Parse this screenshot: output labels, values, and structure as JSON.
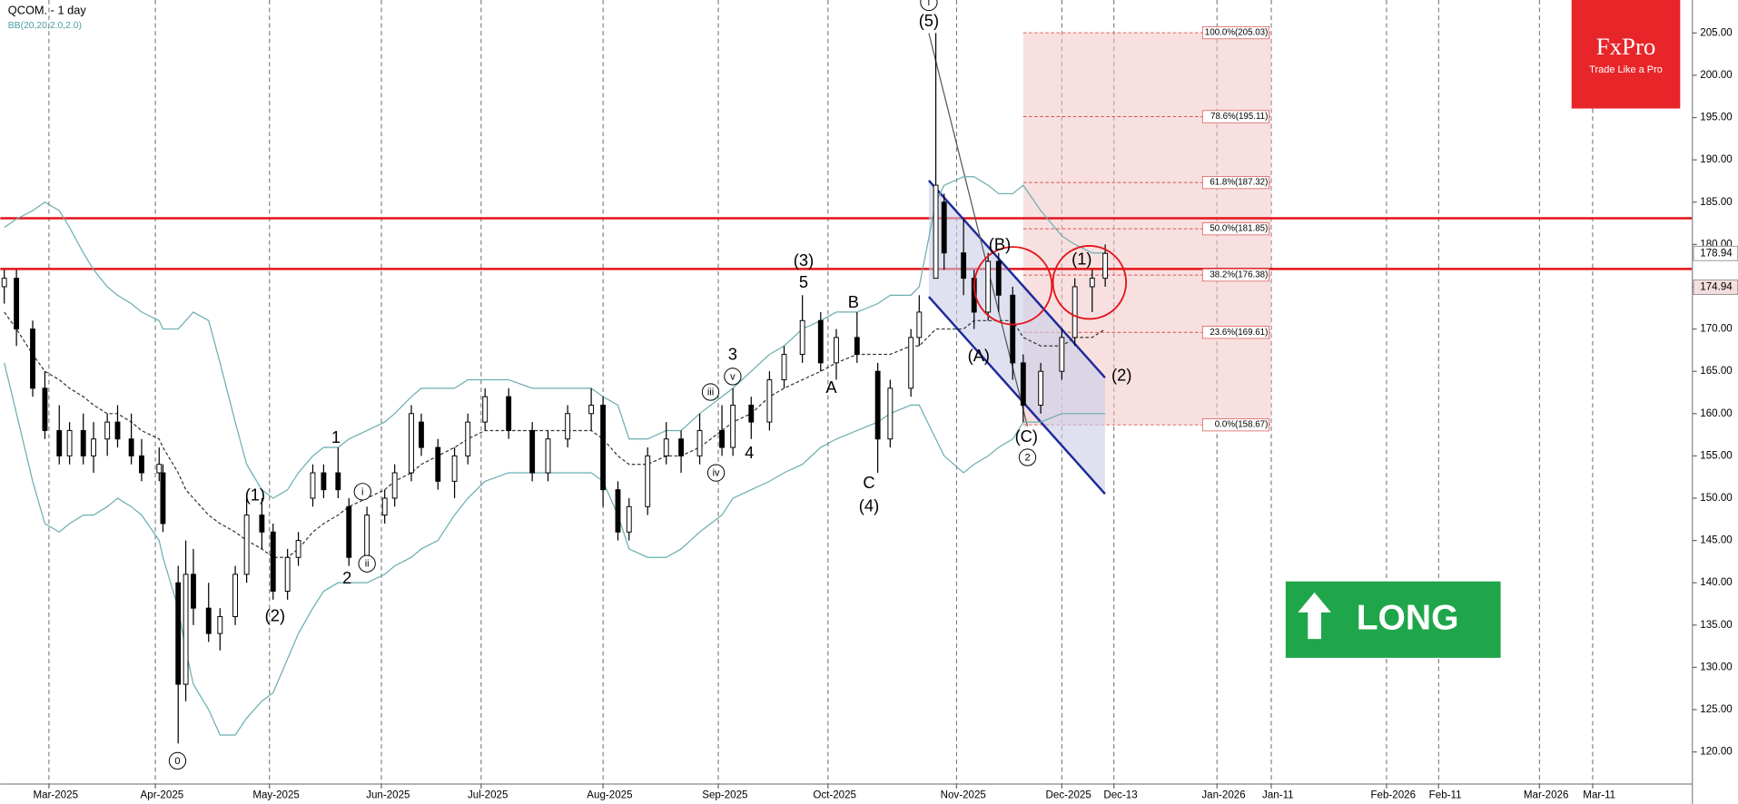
{
  "chart_data": {
    "type": "candlestick",
    "title": "QCOM. - 1 day",
    "indicator_label": "BB(20,20,2.0,2.0)",
    "grid": "x",
    "xlim": [
      "2025-02-17",
      "2026-03-20"
    ],
    "ylim": [
      116.2,
      208.9
    ],
    "xticks": [
      {
        "value": "2025-03-01",
        "label": "Mar-2025"
      },
      {
        "value": "2025-04-01",
        "label": "Apr-2025"
      },
      {
        "value": "2025-05-01",
        "label": "May-2025"
      },
      {
        "value": "2025-06-01",
        "label": "Jun-2025"
      },
      {
        "value": "2025-07-01",
        "label": "Jul-2025"
      },
      {
        "value": "2025-08-01",
        "label": "Aug-2025"
      },
      {
        "value": "2025-09-01",
        "label": "Sep-2025"
      },
      {
        "value": "2025-10-01",
        "label": "Oct-2025"
      },
      {
        "value": "2025-11-01",
        "label": "Nov-2025"
      },
      {
        "value": "2025-12-01",
        "label": "Dec-2025"
      },
      {
        "value": "2025-12-13",
        "label": "Dec-13"
      },
      {
        "value": "2026-01-01",
        "label": "Jan-2026"
      },
      {
        "value": "2026-01-11",
        "label": "Jan-11"
      },
      {
        "value": "2026-02-01",
        "label": "Feb-2026"
      },
      {
        "value": "2026-02-11",
        "label": "Feb-11"
      },
      {
        "value": "2026-03-01",
        "label": "Mar-2026"
      },
      {
        "value": "2026-03-11",
        "label": "Mar-11"
      }
    ],
    "yticks": [
      {
        "value": 120,
        "label": "120.00"
      },
      {
        "value": 125,
        "label": "125.00"
      },
      {
        "value": 130,
        "label": "130.00"
      },
      {
        "value": 135,
        "label": "135.00"
      },
      {
        "value": 140,
        "label": "140.00"
      },
      {
        "value": 145,
        "label": "145.00"
      },
      {
        "value": 150,
        "label": "150.00"
      },
      {
        "value": 155,
        "label": "155.00"
      },
      {
        "value": 160,
        "label": "160.00"
      },
      {
        "value": 165,
        "label": "165.00"
      },
      {
        "value": 170,
        "label": "170.00"
      },
      {
        "value": 175,
        "label": "175.00"
      },
      {
        "value": 180,
        "label": "180.00"
      },
      {
        "value": 185,
        "label": "185.00"
      },
      {
        "value": 190,
        "label": "190.00"
      },
      {
        "value": 195,
        "label": "195.00"
      },
      {
        "value": 200,
        "label": "200.00"
      },
      {
        "value": 205,
        "label": "205.00"
      }
    ],
    "x": [
      "2025-02-18",
      "2025-02-21",
      "2025-02-25",
      "2025-02-28",
      "2025-03-04",
      "2025-03-07",
      "2025-03-11",
      "2025-03-14",
      "2025-03-18",
      "2025-03-21",
      "2025-03-25",
      "2025-03-28",
      "2025-04-02",
      "2025-04-03",
      "2025-04-07",
      "2025-04-09",
      "2025-04-11",
      "2025-04-15",
      "2025-04-18",
      "2025-04-22",
      "2025-04-25",
      "2025-04-29",
      "2025-05-02",
      "2025-05-06",
      "2025-05-09",
      "2025-05-13",
      "2025-05-16",
      "2025-05-20",
      "2025-05-23",
      "2025-05-28",
      "2025-06-02",
      "2025-06-05",
      "2025-06-10",
      "2025-06-13",
      "2025-06-18",
      "2025-06-23",
      "2025-06-27",
      "2025-07-02",
      "2025-07-08",
      "2025-07-14",
      "2025-07-18",
      "2025-07-23",
      "2025-07-29",
      "2025-08-01",
      "2025-08-05",
      "2025-08-08",
      "2025-08-13",
      "2025-08-18",
      "2025-08-22",
      "2025-08-27",
      "2025-09-02",
      "2025-09-05",
      "2025-09-10",
      "2025-09-15",
      "2025-09-19",
      "2025-09-24",
      "2025-09-29",
      "2025-10-03",
      "2025-10-08",
      "2025-10-13",
      "2025-10-16",
      "2025-10-21",
      "2025-10-23",
      "2025-10-27",
      "2025-10-29",
      "2025-11-03",
      "2025-11-06",
      "2025-11-10",
      "2025-11-13",
      "2025-11-17",
      "2025-11-20",
      "2025-11-25",
      "2025-12-01",
      "2025-12-04",
      "2025-12-08",
      "2025-12-11"
    ],
    "open": [
      175,
      176,
      170,
      163,
      158,
      155,
      158,
      155,
      157,
      159,
      157,
      155,
      153,
      153,
      140,
      128,
      141,
      137,
      134,
      136,
      141,
      148,
      146,
      139,
      143,
      150,
      153,
      153,
      149,
      143,
      148,
      150,
      153,
      159,
      156,
      152,
      155,
      159,
      162,
      158,
      153,
      157,
      160,
      161,
      151,
      146,
      149,
      155,
      157,
      155,
      158,
      156,
      161,
      159,
      164,
      167,
      171,
      166,
      169,
      165,
      157,
      163,
      169,
      176,
      185,
      179,
      176,
      172,
      178,
      174,
      166,
      161,
      165,
      169,
      175,
      176
    ],
    "high": [
      177,
      177,
      171,
      165,
      161,
      159,
      160,
      159,
      160,
      161,
      160,
      157,
      156,
      154,
      142,
      145,
      144,
      140,
      137,
      142,
      150,
      150,
      147,
      144,
      146,
      154,
      154,
      156,
      150,
      149,
      151,
      154,
      161,
      160,
      157,
      156,
      160,
      163,
      163,
      159,
      158,
      161,
      163,
      162,
      152,
      150,
      156,
      159,
      158,
      160,
      161,
      163,
      162,
      165,
      168,
      174,
      172,
      170,
      172,
      166,
      164,
      170,
      174,
      205,
      186,
      183,
      177,
      179,
      179,
      175,
      167,
      166,
      170,
      176,
      177,
      180
    ],
    "low": [
      173,
      168,
      162,
      157,
      154,
      154,
      154,
      153,
      155,
      156,
      154,
      152,
      152,
      146,
      121,
      126,
      135,
      133,
      132,
      135,
      140,
      144,
      138,
      138,
      142,
      149,
      150,
      150,
      142,
      142,
      147,
      149,
      152,
      155,
      151,
      150,
      154,
      158,
      157,
      152,
      152,
      156,
      158,
      149,
      145,
      145,
      148,
      154,
      153,
      154,
      155,
      155,
      157,
      158,
      163,
      166,
      165,
      164,
      166,
      153,
      156,
      162,
      168,
      176,
      177,
      174,
      170,
      171,
      172,
      164,
      159,
      160,
      164,
      168,
      172,
      175
    ],
    "close": [
      176,
      170,
      163,
      158,
      155,
      158,
      155,
      157,
      159,
      157,
      155,
      153,
      154,
      147,
      128,
      141,
      137,
      134,
      136,
      141,
      148,
      146,
      139,
      143,
      145,
      153,
      151,
      151,
      143,
      148,
      150,
      153,
      160,
      156,
      152,
      155,
      159,
      162,
      158,
      153,
      157,
      160,
      161,
      151,
      146,
      149,
      155,
      157,
      155,
      158,
      156,
      161,
      159,
      164,
      167,
      171,
      166,
      169,
      167,
      157,
      163,
      169,
      172,
      187,
      179,
      176,
      172,
      178,
      174,
      166,
      161,
      165,
      169,
      175,
      176,
      178.94
    ],
    "up_color": "#ffffff",
    "down_color": "#000000",
    "bollinger": {
      "color": "#6aaeb0",
      "upper": [
        182,
        183,
        184,
        185,
        184,
        182,
        179,
        177,
        175,
        174,
        173,
        172,
        171,
        170,
        170,
        171,
        172,
        171,
        166,
        159,
        154,
        151,
        150,
        151,
        153,
        155,
        156,
        156,
        157,
        158,
        159,
        160,
        162,
        163,
        163,
        163,
        164,
        164,
        164,
        163,
        163,
        163,
        163,
        162,
        161,
        157,
        157,
        158,
        158,
        160,
        162,
        163,
        165,
        167,
        168,
        170,
        171,
        172,
        172,
        173,
        174,
        174,
        175,
        185,
        187,
        188,
        188,
        187,
        186,
        186,
        187,
        184,
        181,
        180,
        179,
        179
      ],
      "middle": [
        172,
        170,
        167,
        165,
        164,
        163,
        162,
        161,
        160,
        160,
        159,
        158,
        157,
        156,
        153,
        151,
        150,
        148,
        147,
        146,
        145,
        144,
        143,
        143,
        144,
        146,
        147,
        148,
        149,
        150,
        151,
        152,
        153,
        154,
        155,
        156,
        157,
        158,
        158,
        158,
        158,
        158,
        158,
        157,
        155,
        154,
        154,
        155,
        155,
        156,
        158,
        159,
        160,
        162,
        163,
        164,
        165,
        166,
        167,
        167,
        167,
        168,
        168,
        170,
        170,
        170,
        171,
        171,
        171,
        171,
        169,
        168,
        168,
        169,
        169,
        170
      ],
      "lower": [
        166,
        160,
        152,
        147,
        146,
        147,
        148,
        148,
        149,
        150,
        149,
        148,
        145,
        143,
        137,
        132,
        128,
        125,
        122,
        122,
        124,
        126,
        127,
        131,
        134,
        137,
        139,
        140,
        140,
        140,
        141,
        142,
        143,
        144,
        145,
        148,
        150,
        152,
        153,
        153,
        153,
        153,
        153,
        152,
        148,
        144,
        143,
        143,
        144,
        146,
        148,
        150,
        151,
        152,
        153,
        154,
        156,
        157,
        158,
        159,
        160,
        161,
        161,
        157,
        155,
        153,
        154,
        155,
        156,
        157,
        159,
        159,
        160,
        160,
        160,
        160
      ]
    },
    "levels": [
      183.1,
      177.1
    ],
    "level_color": "#e3151a",
    "price_labels": [
      {
        "value": 178.94,
        "label": "178.94"
      },
      {
        "value": 174.94,
        "label": "174.94"
      }
    ],
    "fib": {
      "x": [
        "2025-11-20",
        "2026-01-11"
      ],
      "levels": [
        {
          "value": 205.03,
          "label": "100.0%(205.03)"
        },
        {
          "value": 195.11,
          "label": "78.6%(195.11)"
        },
        {
          "value": 187.32,
          "label": "61.8%(187.32)"
        },
        {
          "value": 181.85,
          "label": "50.0%(181.85)"
        },
        {
          "value": 176.38,
          "label": "38.2%(176.38)"
        },
        {
          "value": 169.61,
          "label": "23.6%(169.61)"
        },
        {
          "value": 158.67,
          "label": "0.0%(158.67)"
        }
      ]
    },
    "annotations": [
      "(5)",
      "i",
      "(B)",
      "(A)",
      "(C)",
      "2",
      "(1)",
      "(2)",
      "(3)",
      "5",
      "B",
      "A",
      "C",
      "(4)",
      "3",
      "v",
      "iii",
      "iv",
      "4",
      "1",
      "i",
      "2",
      "ii",
      "(1)",
      "(2)",
      "0"
    ],
    "logo": {
      "name": "FxPro",
      "tagline": "Trade Like a Pro"
    },
    "signal": "LONG"
  }
}
